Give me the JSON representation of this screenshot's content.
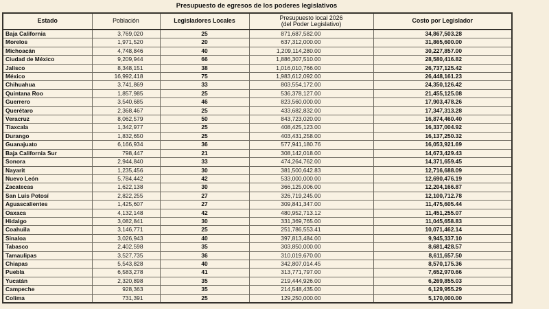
{
  "title": "Presupuesto de egresos de los poderes legislativos",
  "colors": {
    "page_background": "#f6eedd",
    "cell_background": "#f9f2e3",
    "outer_border": "#35322c",
    "inner_border": "#6e6a60",
    "text": "#0d0d0d"
  },
  "table": {
    "columns": [
      {
        "key": "estado",
        "label": "Estado"
      },
      {
        "key": "poblacion",
        "label": "Población"
      },
      {
        "key": "legisladores",
        "label": "Legisladores Locales"
      },
      {
        "key": "presupuesto",
        "label": "Presupuesto local 2026",
        "label2": "(del Poder Legislativo)"
      },
      {
        "key": "costo",
        "label": "Costo por Legislador"
      }
    ],
    "rows": [
      {
        "estado": "Baja California",
        "poblacion": "3,769,020",
        "legisladores": "25",
        "presupuesto": "871,687,582.00",
        "costo": "34,867,503.28"
      },
      {
        "estado": "Morelos",
        "poblacion": "1,971,520",
        "legisladores": "20",
        "presupuesto": "637,312,000.00",
        "costo": "31,865,600.00"
      },
      {
        "estado": "Michoacán",
        "poblacion": "4,748,846",
        "legisladores": "40",
        "presupuesto": "1,209,114,280.00",
        "costo": "30,227,857.00"
      },
      {
        "estado": "Ciudad de México",
        "poblacion": "9,209,944",
        "legisladores": "66",
        "presupuesto": "1,886,307,510.00",
        "costo": "28,580,416.82"
      },
      {
        "estado": "Jalisco",
        "poblacion": "8,348,151",
        "legisladores": "38",
        "presupuesto": "1,016,010,766.00",
        "costo": "26,737,125.42"
      },
      {
        "estado": "México",
        "poblacion": "16,992,418",
        "legisladores": "75",
        "presupuesto": "1,983,612,092.00",
        "costo": "26,448,161.23"
      },
      {
        "estado": "Chihuahua",
        "poblacion": "3,741,869",
        "legisladores": "33",
        "presupuesto": "803,554,172.00",
        "costo": "24,350,126.42"
      },
      {
        "estado": "Quintana Roo",
        "poblacion": "1,857,985",
        "legisladores": "25",
        "presupuesto": "536,378,127.00",
        "costo": "21,455,125.08"
      },
      {
        "estado": "Guerrero",
        "poblacion": "3,540,685",
        "legisladores": "46",
        "presupuesto": "823,560,000.00",
        "costo": "17,903,478.26"
      },
      {
        "estado": "Querétaro",
        "poblacion": "2,368,467",
        "legisladores": "25",
        "presupuesto": "433,682,832.00",
        "costo": "17,347,313.28"
      },
      {
        "estado": "Veracruz",
        "poblacion": "8,062,579",
        "legisladores": "50",
        "presupuesto": "843,723,020.00",
        "costo": "16,874,460.40"
      },
      {
        "estado": "Tlaxcala",
        "poblacion": "1,342,977",
        "legisladores": "25",
        "presupuesto": "408,425,123.00",
        "costo": "16,337,004.92"
      },
      {
        "estado": "Durango",
        "poblacion": "1,832,650",
        "legisladores": "25",
        "presupuesto": "403,431,258.00",
        "costo": "16,137,250.32"
      },
      {
        "estado": "Guanajuato",
        "poblacion": "6,166,934",
        "legisladores": "36",
        "presupuesto": "577,941,180.76",
        "costo": "16,053,921.69"
      },
      {
        "estado": "Baja California Sur",
        "poblacion": "798,447",
        "legisladores": "21",
        "presupuesto": "308,142,018.00",
        "costo": "14,673,429.43"
      },
      {
        "estado": "Sonora",
        "poblacion": "2,944,840",
        "legisladores": "33",
        "presupuesto": "474,264,762.00",
        "costo": "14,371,659.45"
      },
      {
        "estado": "Nayarit",
        "poblacion": "1,235,456",
        "legisladores": "30",
        "presupuesto": "381,500,642.83",
        "costo": "12,716,688.09"
      },
      {
        "estado": "Nuevo León",
        "poblacion": "5,784,442",
        "legisladores": "42",
        "presupuesto": "533,000,000.00",
        "costo": "12,690,476.19"
      },
      {
        "estado": "Zacatecas",
        "poblacion": "1,622,138",
        "legisladores": "30",
        "presupuesto": "366,125,006.00",
        "costo": "12,204,166.87"
      },
      {
        "estado": "San Luis Potosí",
        "poblacion": "2,822,255",
        "legisladores": "27",
        "presupuesto": "326,719,245.00",
        "costo": "12,100,712.78"
      },
      {
        "estado": "Aguascalientes",
        "poblacion": "1,425,607",
        "legisladores": "27",
        "presupuesto": "309,841,347.00",
        "costo": "11,475,605.44"
      },
      {
        "estado": "Oaxaca",
        "poblacion": "4,132,148",
        "legisladores": "42",
        "presupuesto": "480,952,713.12",
        "costo": "11,451,255.07"
      },
      {
        "estado": "Hidalgo",
        "poblacion": "3,082,841",
        "legisladores": "30",
        "presupuesto": "331,369,765.00",
        "costo": "11,045,658.83"
      },
      {
        "estado": "Coahuila",
        "poblacion": "3,146,771",
        "legisladores": "25",
        "presupuesto": "251,786,553.41",
        "costo": "10,071,462.14"
      },
      {
        "estado": "Sinaloa",
        "poblacion": "3,026,943",
        "legisladores": "40",
        "presupuesto": "397,813,484.00",
        "costo": "9,945,337.10"
      },
      {
        "estado": "Tabasco",
        "poblacion": "2,402,598",
        "legisladores": "35",
        "presupuesto": "303,850,000.00",
        "costo": "8,681,428.57"
      },
      {
        "estado": "Tamaulipas",
        "poblacion": "3,527,735",
        "legisladores": "36",
        "presupuesto": "310,019,670.00",
        "costo": "8,611,657.50"
      },
      {
        "estado": "Chiapas",
        "poblacion": "5,543,828",
        "legisladores": "40",
        "presupuesto": "342,807,014.45",
        "costo": "8,570,175.36"
      },
      {
        "estado": "Puebla",
        "poblacion": "6,583,278",
        "legisladores": "41",
        "presupuesto": "313,771,797.00",
        "costo": "7,652,970.66"
      },
      {
        "estado": "Yucatán",
        "poblacion": "2,320,898",
        "legisladores": "35",
        "presupuesto": "219,444,926.00",
        "costo": "6,269,855.03"
      },
      {
        "estado": "Campeche",
        "poblacion": "928,363",
        "legisladores": "35",
        "presupuesto": "214,548,435.00",
        "costo": "6,129,955.29"
      },
      {
        "estado": "Colima",
        "poblacion": "731,391",
        "legisladores": "25",
        "presupuesto": "129,250,000.00",
        "costo": "5,170,000.00"
      }
    ]
  }
}
